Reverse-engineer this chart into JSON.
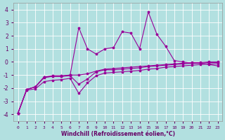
{
  "xlabel": "Windchill (Refroidissement éolien,°C)",
  "bg_color": "#b2e0e0",
  "grid_color": "#d0e8e8",
  "line_color": "#990099",
  "x_ticks": [
    0,
    1,
    2,
    3,
    4,
    5,
    6,
    7,
    8,
    9,
    10,
    11,
    12,
    13,
    14,
    15,
    16,
    17,
    18,
    19,
    20,
    21,
    22,
    23
  ],
  "ylim": [
    -4.5,
    4.5
  ],
  "xlim": [
    -0.5,
    23.5
  ],
  "yticks": [
    -4,
    -3,
    -2,
    -1,
    0,
    1,
    2,
    3,
    4
  ],
  "line1": {
    "x": [
      0,
      1,
      2,
      3,
      4,
      5,
      6,
      7,
      8,
      9,
      10,
      11,
      12,
      13,
      14,
      15,
      16,
      17,
      18,
      19,
      20,
      21,
      22,
      23
    ],
    "y": [
      -3.9,
      -2.1,
      -1.9,
      -1.2,
      -1.1,
      -1.1,
      -1.0,
      2.6,
      1.0,
      0.6,
      1.0,
      1.1,
      2.3,
      2.2,
      1.0,
      3.8,
      2.1,
      1.2,
      0.1,
      0.0,
      -0.1,
      -0.1,
      -0.2,
      -0.3
    ]
  },
  "line2": {
    "x": [
      0,
      1,
      2,
      3,
      4,
      5,
      6,
      7,
      8,
      9,
      10,
      11,
      12,
      13,
      14,
      15,
      16,
      17,
      18,
      19,
      20,
      21,
      22,
      23
    ],
    "y": [
      -3.9,
      -2.1,
      -1.9,
      -1.15,
      -1.05,
      -1.05,
      -1.0,
      -1.0,
      -0.9,
      -0.7,
      -0.55,
      -0.5,
      -0.45,
      -0.4,
      -0.35,
      -0.3,
      -0.25,
      -0.2,
      -0.15,
      -0.1,
      -0.05,
      -0.05,
      0.0,
      0.0
    ]
  },
  "line3": {
    "x": [
      0,
      1,
      2,
      3,
      4,
      5,
      6,
      7,
      8,
      9,
      10,
      11,
      12,
      13,
      14,
      15,
      16,
      17,
      18,
      19,
      20,
      21,
      22,
      23
    ],
    "y": [
      -3.9,
      -2.1,
      -1.9,
      -1.15,
      -1.1,
      -1.1,
      -1.05,
      -1.7,
      -1.3,
      -0.75,
      -0.6,
      -0.6,
      -0.55,
      -0.5,
      -0.45,
      -0.35,
      -0.3,
      -0.25,
      -0.2,
      -0.15,
      -0.1,
      -0.1,
      -0.05,
      -0.05
    ]
  },
  "line4": {
    "x": [
      0,
      1,
      2,
      3,
      4,
      5,
      6,
      7,
      8,
      9,
      10,
      11,
      12,
      13,
      14,
      15,
      16,
      17,
      18,
      19,
      20,
      21,
      22,
      23
    ],
    "y": [
      -3.9,
      -2.15,
      -2.05,
      -1.5,
      -1.4,
      -1.35,
      -1.25,
      -2.4,
      -1.6,
      -1.05,
      -0.85,
      -0.8,
      -0.75,
      -0.7,
      -0.65,
      -0.55,
      -0.5,
      -0.4,
      -0.35,
      -0.3,
      -0.25,
      -0.2,
      -0.15,
      -0.15
    ]
  }
}
